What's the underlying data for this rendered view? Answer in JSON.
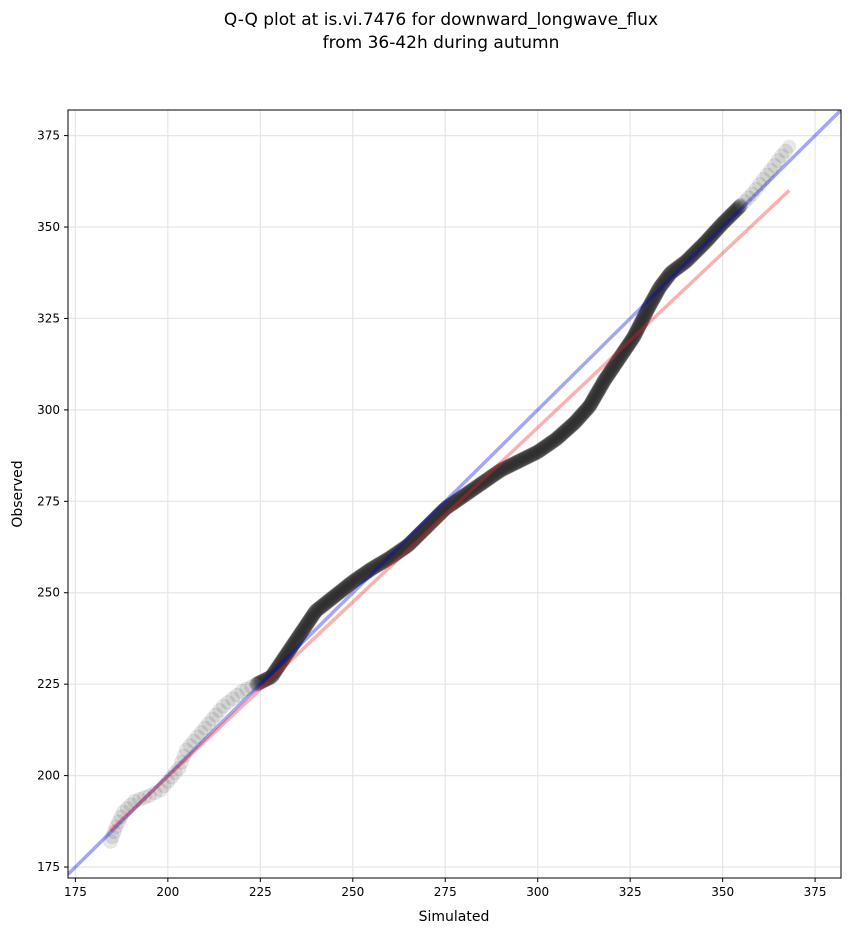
{
  "chart_data": {
    "type": "scatter",
    "title_line1": "Q-Q plot at is.vi.7476 for downward_longwave_flux",
    "title_line2": "from 36-42h during autumn",
    "xlabel": "Simulated",
    "ylabel": "Observed",
    "xlim": [
      173,
      382
    ],
    "ylim": [
      172,
      382
    ],
    "xticks": [
      175,
      200,
      225,
      250,
      275,
      300,
      325,
      350,
      375
    ],
    "yticks": [
      175,
      200,
      225,
      250,
      275,
      300,
      325,
      350,
      375
    ],
    "grid": true,
    "reference_line": {
      "name": "1:1 line",
      "color": "#0000dd",
      "from": [
        173,
        173
      ],
      "to": [
        382,
        382
      ]
    },
    "fit_line": {
      "name": "fit",
      "color": "#ee2222",
      "from": [
        184.5,
        185
      ],
      "to": [
        368,
        360
      ]
    },
    "quantile_curve": [
      [
        184.5,
        182
      ],
      [
        186,
        186
      ],
      [
        188,
        190
      ],
      [
        191,
        193
      ],
      [
        195,
        194.5
      ],
      [
        198,
        196
      ],
      [
        203,
        202
      ],
      [
        205,
        207
      ],
      [
        210,
        213
      ],
      [
        215,
        219
      ],
      [
        220,
        223
      ],
      [
        224,
        225
      ],
      [
        228,
        227
      ],
      [
        232,
        233
      ],
      [
        236,
        239
      ],
      [
        240,
        245
      ],
      [
        245,
        249
      ],
      [
        250,
        253
      ],
      [
        255,
        256.5
      ],
      [
        260,
        259.5
      ],
      [
        265,
        263
      ],
      [
        270,
        268
      ],
      [
        275,
        273
      ],
      [
        280,
        276.5
      ],
      [
        285,
        280
      ],
      [
        290,
        283.5
      ],
      [
        295,
        286
      ],
      [
        300,
        288.5
      ],
      [
        305,
        292
      ],
      [
        310,
        296.5
      ],
      [
        314,
        301
      ],
      [
        318,
        308
      ],
      [
        322,
        314
      ],
      [
        326,
        320
      ],
      [
        330,
        328
      ],
      [
        333,
        333.5
      ],
      [
        336,
        337.5
      ],
      [
        340,
        340.5
      ],
      [
        345,
        345.5
      ],
      [
        350,
        351
      ],
      [
        355,
        356
      ],
      [
        358,
        359
      ],
      [
        361,
        363
      ],
      [
        363,
        365.5
      ],
      [
        366,
        369.5
      ],
      [
        368,
        372
      ]
    ]
  }
}
